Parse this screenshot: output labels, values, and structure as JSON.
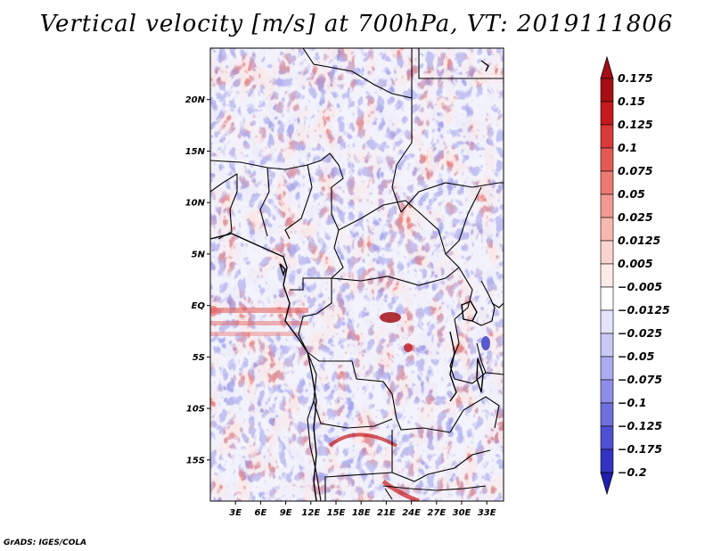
{
  "title": "Vertical velocity [m/s] at 700hPa, VT: 2019111806",
  "credit": "GrADS: IGES/COLA",
  "map": {
    "lon_range": [
      0,
      35
    ],
    "lat_range": [
      -19,
      25
    ],
    "lat_ticks": [
      {
        "value": 20,
        "label": "20N"
      },
      {
        "value": 15,
        "label": "15N"
      },
      {
        "value": 10,
        "label": "10N"
      },
      {
        "value": 5,
        "label": "5N"
      },
      {
        "value": 0,
        "label": "EQ"
      },
      {
        "value": -5,
        "label": "5S"
      },
      {
        "value": -10,
        "label": "10S"
      },
      {
        "value": -15,
        "label": "15S"
      }
    ],
    "lon_ticks": [
      {
        "value": 3,
        "label": "3E"
      },
      {
        "value": 6,
        "label": "6E"
      },
      {
        "value": 9,
        "label": "9E"
      },
      {
        "value": 12,
        "label": "12E"
      },
      {
        "value": 15,
        "label": "15E"
      },
      {
        "value": 18,
        "label": "18E"
      },
      {
        "value": 21,
        "label": "21E"
      },
      {
        "value": 24,
        "label": "24E"
      },
      {
        "value": 27,
        "label": "27E"
      },
      {
        "value": 30,
        "label": "30E"
      },
      {
        "value": 33,
        "label": "33E"
      }
    ]
  },
  "colorbar": {
    "levels": [
      {
        "label": "0.175",
        "color": "#a50f15"
      },
      {
        "label": "0.15",
        "color": "#c4191e"
      },
      {
        "label": "0.125",
        "color": "#d83a38"
      },
      {
        "label": "0.1",
        "color": "#e35a55"
      },
      {
        "label": "0.075",
        "color": "#ec7a73"
      },
      {
        "label": "0.05",
        "color": "#f29a92"
      },
      {
        "label": "0.025",
        "color": "#f7b8b1"
      },
      {
        "label": "0.0125",
        "color": "#fbd4cf"
      },
      {
        "label": "0.005",
        "color": "#fdebe8"
      },
      {
        "label": "−0.005",
        "color": "#ffffff"
      },
      {
        "label": "−0.0125",
        "color": "#e4e4fb"
      },
      {
        "label": "−0.025",
        "color": "#c9c9f6"
      },
      {
        "label": "−0.05",
        "color": "#acacf0"
      },
      {
        "label": "−0.075",
        "color": "#8e8ee8"
      },
      {
        "label": "−0.1",
        "color": "#6f6fde"
      },
      {
        "label": "−0.125",
        "color": "#5050d2"
      },
      {
        "label": "−0.175",
        "color": "#3333c2"
      },
      {
        "label": "−0.2",
        "color": "#1f1fae"
      }
    ],
    "top_cap_color": "#a50f15",
    "bottom_cap_color": "#1f1fae"
  },
  "colors": {
    "warm_field": "#f3a9a2",
    "cool_field": "#b3b3f0",
    "strong_warm": "#c4191e",
    "strong_cool": "#3333c2",
    "boundary": "#000000"
  }
}
